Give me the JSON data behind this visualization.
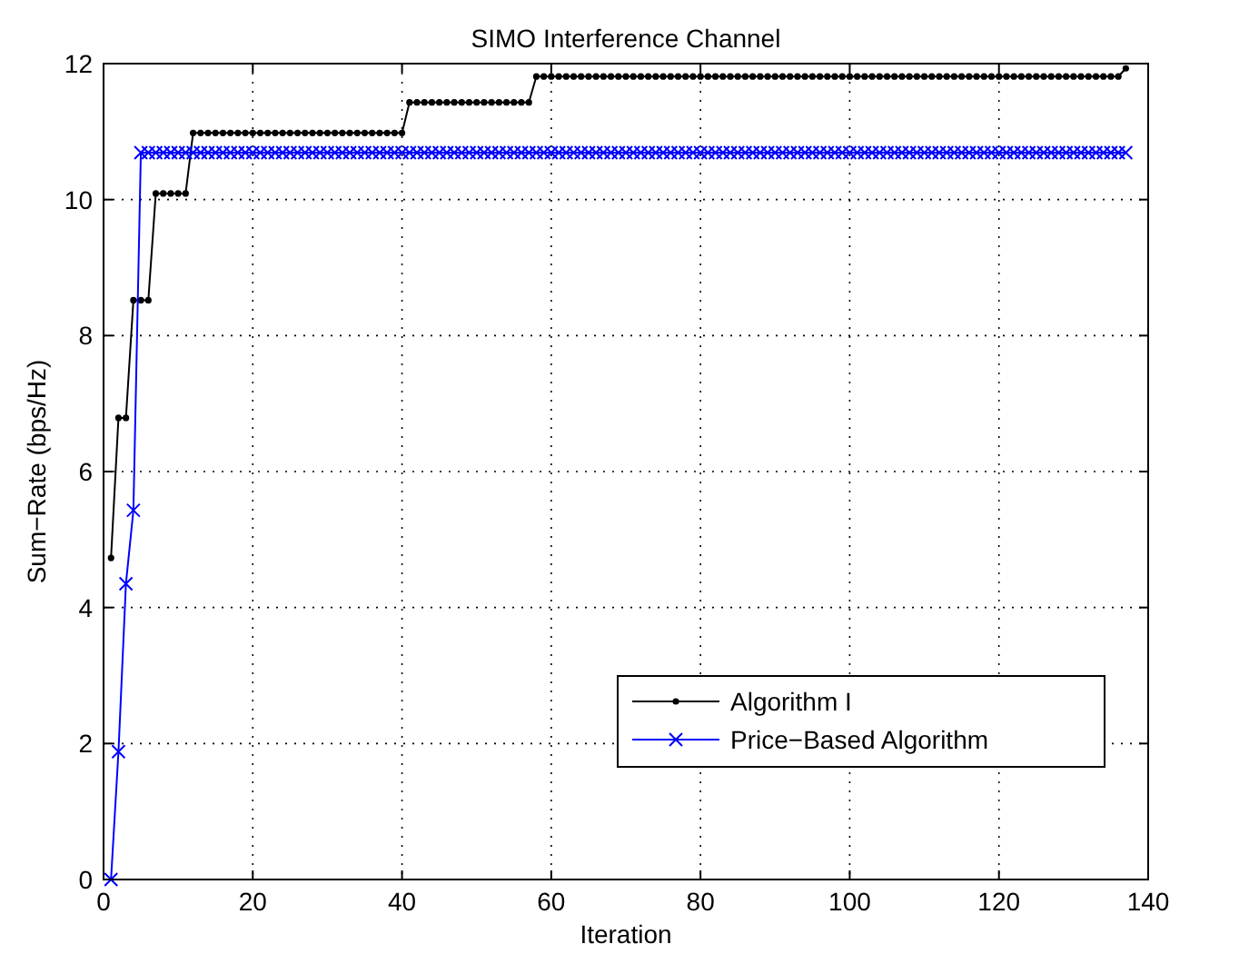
{
  "chart_data": {
    "type": "line",
    "title": "SIMO Interference Channel",
    "xlabel": "Iteration",
    "ylabel": "Sum−Rate (bps/Hz)",
    "x": [
      1,
      2,
      3,
      4,
      5,
      6,
      7,
      8,
      9,
      10,
      11,
      12,
      13,
      14,
      15,
      16,
      17,
      18,
      19,
      20,
      21,
      22,
      23,
      24,
      25,
      26,
      27,
      28,
      29,
      30,
      31,
      32,
      33,
      34,
      35,
      36,
      37,
      38,
      39,
      40,
      41,
      42,
      43,
      44,
      45,
      46,
      47,
      48,
      49,
      50,
      51,
      52,
      53,
      54,
      55,
      56,
      57,
      58,
      59,
      60,
      61,
      62,
      63,
      64,
      65,
      66,
      67,
      68,
      69,
      70,
      71,
      72,
      73,
      74,
      75,
      76,
      77,
      78,
      79,
      80,
      81,
      82,
      83,
      84,
      85,
      86,
      87,
      88,
      89,
      90,
      91,
      92,
      93,
      94,
      95,
      96,
      97,
      98,
      99,
      100,
      101,
      102,
      103,
      104,
      105,
      106,
      107,
      108,
      109,
      110,
      111,
      112,
      113,
      114,
      115,
      116,
      117,
      118,
      119,
      120,
      121,
      122,
      123,
      124,
      125,
      126,
      127,
      128,
      129,
      130,
      131,
      132,
      133,
      134,
      135,
      136,
      137
    ],
    "series": [
      {
        "name": "Algorithm I",
        "color": "#000000",
        "marker": "circle",
        "values": [
          4.73,
          6.79,
          6.79,
          8.52,
          8.52,
          8.52,
          10.09,
          10.09,
          10.09,
          10.09,
          10.09,
          10.98,
          10.98,
          10.98,
          10.98,
          10.98,
          10.98,
          10.98,
          10.98,
          10.98,
          10.98,
          10.98,
          10.98,
          10.98,
          10.98,
          10.98,
          10.98,
          10.98,
          10.98,
          10.98,
          10.98,
          10.98,
          10.98,
          10.98,
          10.98,
          10.98,
          10.98,
          10.98,
          10.98,
          10.98,
          11.43,
          11.43,
          11.43,
          11.43,
          11.43,
          11.43,
          11.43,
          11.43,
          11.43,
          11.43,
          11.43,
          11.43,
          11.43,
          11.43,
          11.43,
          11.43,
          11.43,
          11.81,
          11.81,
          11.81,
          11.81,
          11.81,
          11.81,
          11.81,
          11.81,
          11.81,
          11.81,
          11.81,
          11.81,
          11.81,
          11.81,
          11.81,
          11.81,
          11.81,
          11.81,
          11.81,
          11.81,
          11.81,
          11.81,
          11.81,
          11.81,
          11.81,
          11.81,
          11.81,
          11.81,
          11.81,
          11.81,
          11.81,
          11.81,
          11.81,
          11.81,
          11.81,
          11.81,
          11.81,
          11.81,
          11.81,
          11.81,
          11.81,
          11.81,
          11.81,
          11.81,
          11.81,
          11.81,
          11.81,
          11.81,
          11.81,
          11.81,
          11.81,
          11.81,
          11.81,
          11.81,
          11.81,
          11.81,
          11.81,
          11.81,
          11.81,
          11.81,
          11.81,
          11.81,
          11.81,
          11.81,
          11.81,
          11.81,
          11.81,
          11.81,
          11.81,
          11.81,
          11.81,
          11.81,
          11.81,
          11.81,
          11.81,
          11.81,
          11.81,
          11.81,
          11.81,
          11.93
        ]
      },
      {
        "name": "Price−Based Algorithm",
        "color": "#0000ff",
        "marker": "cross",
        "values": [
          0,
          1.88,
          4.35,
          5.43,
          10.69,
          10.69,
          10.69,
          10.69,
          10.69,
          10.69,
          10.69,
          10.69,
          10.69,
          10.69,
          10.69,
          10.69,
          10.69,
          10.69,
          10.69,
          10.69,
          10.69,
          10.69,
          10.69,
          10.69,
          10.69,
          10.69,
          10.69,
          10.69,
          10.69,
          10.69,
          10.69,
          10.69,
          10.69,
          10.69,
          10.69,
          10.69,
          10.69,
          10.69,
          10.69,
          10.69,
          10.69,
          10.69,
          10.69,
          10.69,
          10.69,
          10.69,
          10.69,
          10.69,
          10.69,
          10.69,
          10.69,
          10.69,
          10.69,
          10.69,
          10.69,
          10.69,
          10.69,
          10.69,
          10.69,
          10.69,
          10.69,
          10.69,
          10.69,
          10.69,
          10.69,
          10.69,
          10.69,
          10.69,
          10.69,
          10.69,
          10.69,
          10.69,
          10.69,
          10.69,
          10.69,
          10.69,
          10.69,
          10.69,
          10.69,
          10.69,
          10.69,
          10.69,
          10.69,
          10.69,
          10.69,
          10.69,
          10.69,
          10.69,
          10.69,
          10.69,
          10.69,
          10.69,
          10.69,
          10.69,
          10.69,
          10.69,
          10.69,
          10.69,
          10.69,
          10.69,
          10.69,
          10.69,
          10.69,
          10.69,
          10.69,
          10.69,
          10.69,
          10.69,
          10.69,
          10.69,
          10.69,
          10.69,
          10.69,
          10.69,
          10.69,
          10.69,
          10.69,
          10.69,
          10.69,
          10.69,
          10.69,
          10.69,
          10.69,
          10.69,
          10.69,
          10.69,
          10.69,
          10.69,
          10.69,
          10.69,
          10.69,
          10.69,
          10.69,
          10.69,
          10.69,
          10.69,
          10.69
        ]
      }
    ],
    "xlim": [
      0,
      140
    ],
    "xticks": [
      0,
      20,
      40,
      60,
      80,
      100,
      120,
      140
    ],
    "ylim": [
      0,
      12
    ],
    "yticks": [
      0,
      2,
      4,
      6,
      8,
      10,
      12
    ],
    "grid": true,
    "legend": "bottom right",
    "line_style": "solid"
  }
}
